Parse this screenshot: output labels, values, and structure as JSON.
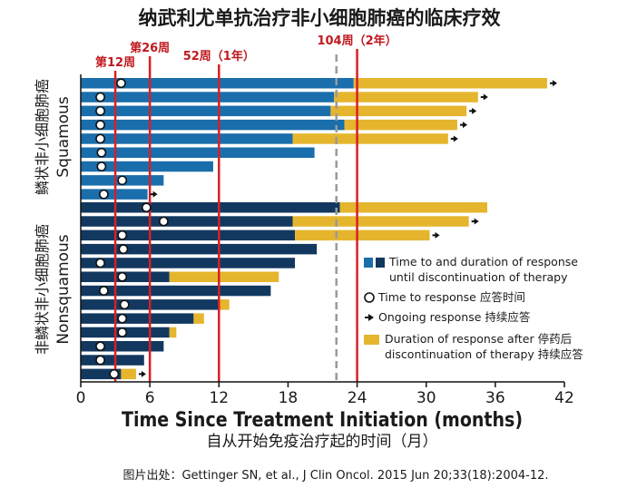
{
  "colors": {
    "squamous_bar": "#1a6eac",
    "nonsquamous_bar": "#12385f",
    "post_discontinuation": "#e5b52e",
    "milestone_line": "#d91f26",
    "dashed_line": "#9a9a9a",
    "text": "#1a1a1a",
    "milestone_text": "#c0191f"
  },
  "chart_data": {
    "type": "bar",
    "title": "纳武利尤单抗治疗非小细胞肺癌的临床疗效",
    "xlabel": "Time Since Treatment Initiation (months)",
    "xlabel_cn": "自从开始免疫治疗起的时间（月）",
    "xlim": [
      0,
      42
    ],
    "xticks": [
      0,
      6,
      12,
      18,
      24,
      30,
      36,
      42
    ],
    "milestones": [
      {
        "x": 3,
        "label": "第12周"
      },
      {
        "x": 6,
        "label": "第26周"
      },
      {
        "x": 12,
        "label": "52周（1年）"
      },
      {
        "x": 24,
        "label": "104周（2年）"
      }
    ],
    "dashed_line_x": 22.2,
    "groups": [
      {
        "name_cn": "鳞状非小细胞肺癌",
        "name_en": "Squamous",
        "color_key": "squamous_bar",
        "rows": [
          {
            "response_end": 23.7,
            "post_end": 40.5,
            "response_time": 3.5,
            "ongoing": true
          },
          {
            "response_end": 22.0,
            "post_end": 34.5,
            "response_time": 1.7,
            "ongoing": true
          },
          {
            "response_end": 21.7,
            "post_end": 33.5,
            "response_time": 1.7,
            "ongoing": true
          },
          {
            "response_end": 22.9,
            "post_end": 32.7,
            "response_time": 1.7,
            "ongoing": true
          },
          {
            "response_end": 18.4,
            "post_end": 31.9,
            "response_time": 1.7,
            "ongoing": true
          },
          {
            "response_end": 20.3,
            "post_end": null,
            "response_time": 1.8,
            "ongoing": false
          },
          {
            "response_end": 11.5,
            "post_end": null,
            "response_time": 1.8,
            "ongoing": false
          },
          {
            "response_end": 7.2,
            "post_end": null,
            "response_time": 3.6,
            "ongoing": false
          },
          {
            "response_end": 5.8,
            "post_end": null,
            "response_time": 2.0,
            "ongoing": true
          }
        ]
      },
      {
        "name_cn": "非鳞状非小细胞肺癌",
        "name_en": "Nonsquamous",
        "color_key": "nonsquamous_bar",
        "rows": [
          {
            "response_end": 22.5,
            "post_end": 35.3,
            "response_time": 5.7,
            "ongoing": false
          },
          {
            "response_end": 18.4,
            "post_end": 33.7,
            "response_time": 7.2,
            "ongoing": true
          },
          {
            "response_end": 18.6,
            "post_end": 30.3,
            "response_time": 3.6,
            "ongoing": true
          },
          {
            "response_end": 20.5,
            "post_end": null,
            "response_time": 3.7,
            "ongoing": false
          },
          {
            "response_end": 18.6,
            "post_end": null,
            "response_time": 1.7,
            "ongoing": false
          },
          {
            "response_end": 7.7,
            "post_end": 17.2,
            "response_time": 3.6,
            "ongoing": false
          },
          {
            "response_end": 16.5,
            "post_end": null,
            "response_time": 2.0,
            "ongoing": false
          },
          {
            "response_end": 12.0,
            "post_end": 12.9,
            "response_time": 3.8,
            "ongoing": false
          },
          {
            "response_end": 9.8,
            "post_end": 10.7,
            "response_time": 3.6,
            "ongoing": false
          },
          {
            "response_end": 7.7,
            "post_end": 8.3,
            "response_time": 3.6,
            "ongoing": false
          },
          {
            "response_end": 7.2,
            "post_end": null,
            "response_time": 1.7,
            "ongoing": false
          },
          {
            "response_end": 5.5,
            "post_end": null,
            "response_time": 1.7,
            "ongoing": false
          },
          {
            "response_end": 3.5,
            "post_end": 4.8,
            "response_time": 2.9,
            "ongoing": true
          }
        ]
      }
    ],
    "legend": {
      "position": "right",
      "items": [
        {
          "kind": "bars",
          "text": [
            "Time to and duration of response",
            "until discontinuation of therapy"
          ]
        },
        {
          "kind": "circle",
          "text": [
            "Time to response 应答时间"
          ]
        },
        {
          "kind": "arrow",
          "text": [
            "Ongoing response 持续应答"
          ]
        },
        {
          "kind": "gold",
          "text": [
            "Duration of response after 停药后",
            "discontinuation of therapy 持续应答"
          ]
        }
      ]
    },
    "source": "图片出处：Gettinger SN, et al., J Clin Oncol. 2015 Jun 20;33(18):2004-12."
  }
}
